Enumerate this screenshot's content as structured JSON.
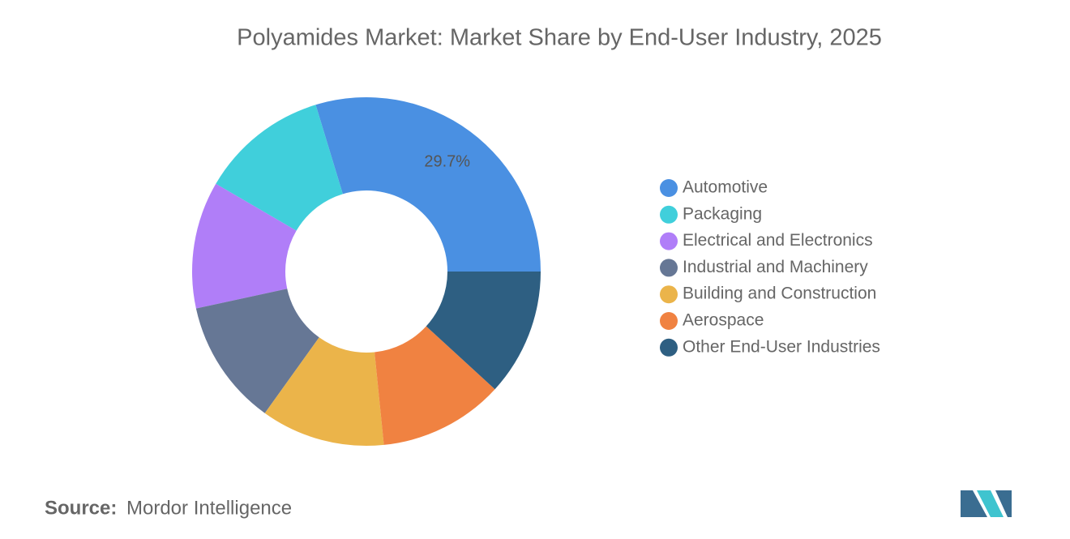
{
  "chart_data": {
    "type": "donut",
    "title": "Polyamides Market: Market Share by End-User Industry, 2025",
    "categories": [
      "Automotive",
      "Packaging",
      "Electrical and Electronics",
      "Industrial and Machinery",
      "Building and Construction",
      "Aerospace",
      "Other End-User Industries"
    ],
    "values": [
      29.7,
      11.9,
      11.8,
      11.7,
      11.5,
      11.6,
      11.8
    ],
    "value_labels": [
      "29.7%",
      null,
      null,
      null,
      null,
      null,
      null
    ],
    "colors": [
      "#4a90e2",
      "#40cfdb",
      "#b07ef8",
      "#667795",
      "#ebb44a",
      "#f08241",
      "#2e5f82"
    ],
    "source_label": "Source:",
    "source": "Mordor Intelligence"
  }
}
